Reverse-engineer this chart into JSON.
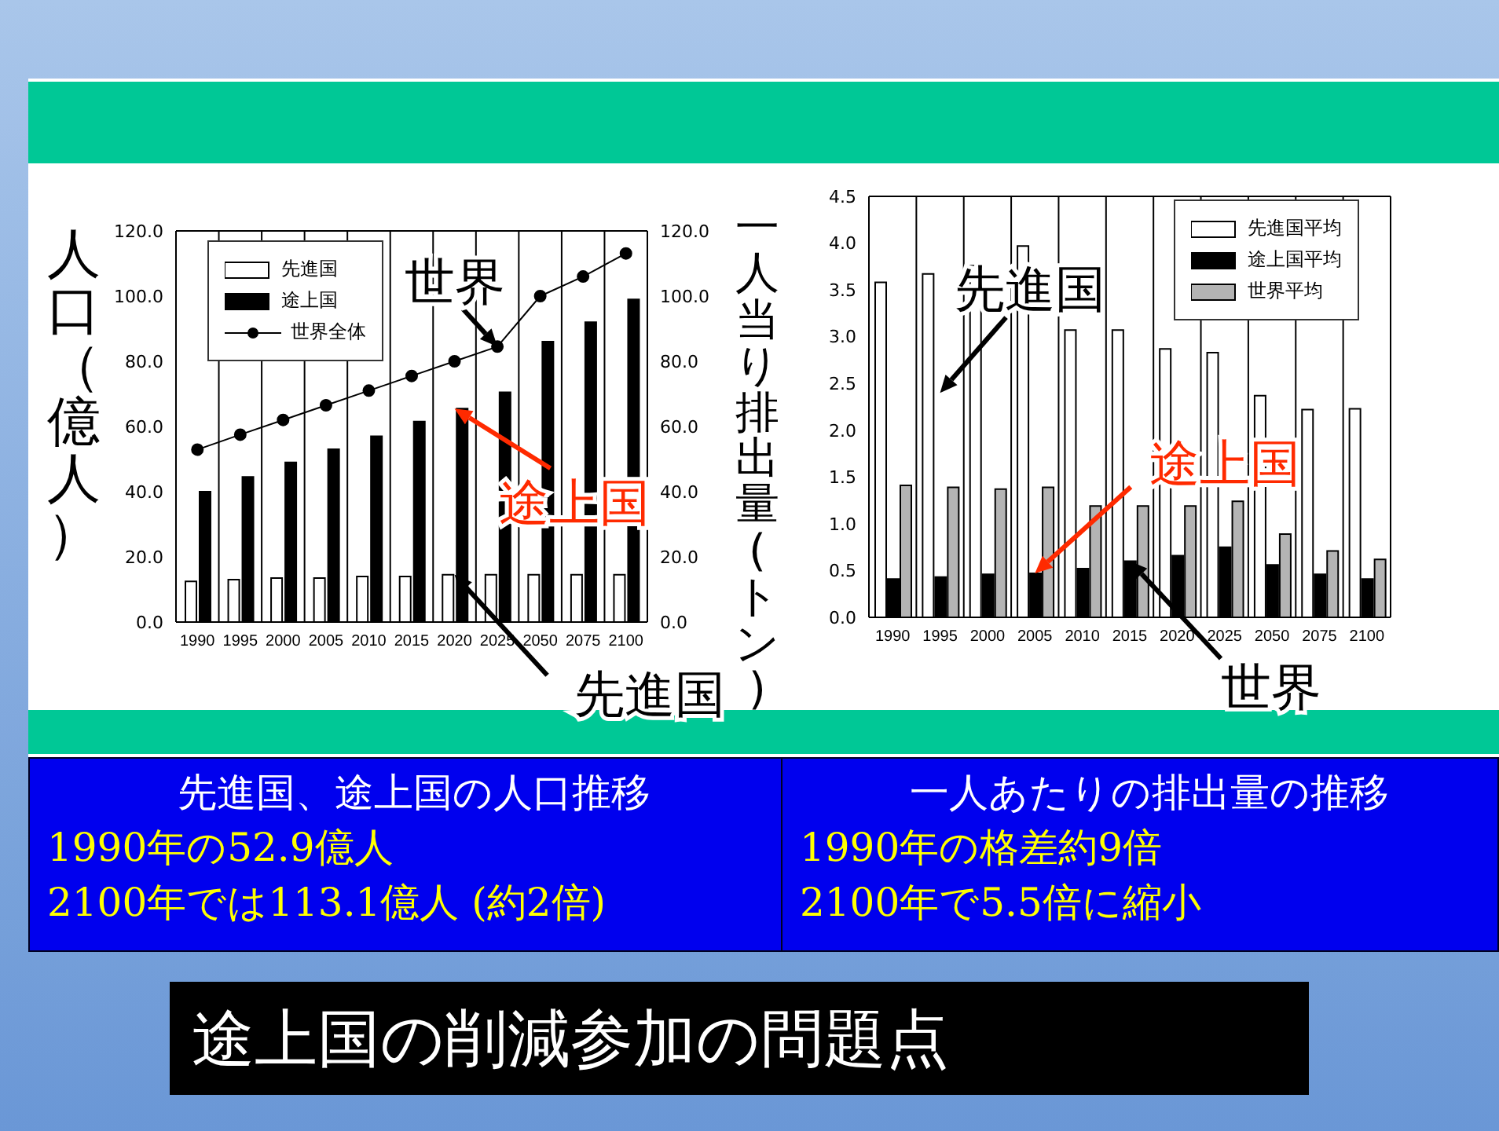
{
  "chart_data": [
    {
      "type": "bar",
      "title": "先進国、途上国の人口推移",
      "subtitle": "途上国の削減参加の問題点",
      "ylabel": "人口（億人）",
      "categories": [
        "1990",
        "1995",
        "2000",
        "2005",
        "2010",
        "2015",
        "2020",
        "2025",
        "2050",
        "2075",
        "2100"
      ],
      "series": [
        {
          "name": "先進国",
          "color": "#ffffff",
          "values": [
            12.5,
            13,
            13.5,
            13.5,
            14,
            14,
            14.5,
            14.5,
            14.5,
            14.5,
            14.5
          ]
        },
        {
          "name": "途上国",
          "color": "#000000",
          "values": [
            40,
            44.5,
            49,
            53,
            57,
            61.5,
            65.5,
            70.5,
            86,
            92,
            99
          ]
        },
        {
          "name": "世界全体",
          "type": "line",
          "color": "#000000",
          "values": [
            52.9,
            57.5,
            62,
            66.5,
            71,
            75.5,
            80,
            84.5,
            100,
            106,
            113.1
          ]
        }
      ],
      "ylim": [
        0,
        120
      ],
      "yticks": [
        {
          "value": 0,
          "label": "0.0"
        },
        {
          "value": 20,
          "label": "20.0"
        },
        {
          "value": 40,
          "label": "40.0"
        },
        {
          "value": 60,
          "label": "60.0"
        },
        {
          "value": 80,
          "label": "80.0"
        },
        {
          "value": 100,
          "label": "100.0"
        },
        {
          "value": 120,
          "label": "120.0"
        }
      ],
      "y2lim": [
        0,
        120
      ],
      "y2ticks": [
        {
          "value": 0,
          "label": "0.0"
        },
        {
          "value": 20,
          "label": "20.0"
        },
        {
          "value": 40,
          "label": "40.0"
        },
        {
          "value": 60,
          "label": "60.0"
        },
        {
          "value": 80,
          "label": "80.0"
        },
        {
          "value": 100,
          "label": "100.0"
        },
        {
          "value": 120,
          "label": "120.0"
        }
      ],
      "grid": true,
      "legend": "top left",
      "marker": "circle",
      "annotations": [
        "1990年の52.9億人",
        "2100年では113.1億人 (約2倍)",
        {
          "text": "世界",
          "x": "2025",
          "y": 84.5
        },
        {
          "text": "途上国",
          "x": "2020",
          "y": 65.5
        },
        {
          "text": "先進国",
          "x": "2020",
          "y": 14.5
        }
      ]
    },
    {
      "type": "bar",
      "title": "一人あたりの排出量の推移",
      "ylabel": "一人当り排出量(トン)",
      "categories": [
        "1990",
        "1995",
        "2000",
        "2005",
        "2010",
        "2015",
        "2020",
        "2025",
        "2050",
        "2075",
        "2100"
      ],
      "series": [
        {
          "name": "先進国平均",
          "color": "#ffffff",
          "values": [
            3.58,
            3.67,
            3.76,
            3.97,
            3.07,
            3.07,
            2.87,
            2.83,
            2.37,
            2.22,
            2.23
          ]
        },
        {
          "name": "途上国平均",
          "color": "#000000",
          "values": [
            0.41,
            0.43,
            0.46,
            0.47,
            0.52,
            0.6,
            0.66,
            0.75,
            0.56,
            0.46,
            0.41
          ]
        },
        {
          "name": "世界平均",
          "color": "#b4b4b4",
          "values": [
            1.41,
            1.39,
            1.37,
            1.39,
            1.19,
            1.19,
            1.19,
            1.24,
            0.89,
            0.71,
            0.62
          ]
        }
      ],
      "ylim": [
        0,
        4.5
      ],
      "yticks": [
        {
          "value": 0,
          "label": "0.0"
        },
        {
          "value": 0.5,
          "label": "0.5"
        },
        {
          "value": 1,
          "label": "1.0"
        },
        {
          "value": 1.5,
          "label": "1.5"
        },
        {
          "value": 2,
          "label": "2.0"
        },
        {
          "value": 2.5,
          "label": "2.5"
        },
        {
          "value": 3,
          "label": "3.0"
        },
        {
          "value": 3.5,
          "label": "3.5"
        },
        {
          "value": 4,
          "label": "4.0"
        },
        {
          "value": 4.5,
          "label": "4.5"
        }
      ],
      "grid": true,
      "legend": "top right",
      "annotations": [
        "1990年の格差約9倍",
        "2100年で5.5倍に縮小",
        {
          "text": "先進国",
          "x": "1995",
          "y": 2.4
        },
        {
          "text": "途上国",
          "x": "2005",
          "y": 0.47
        },
        {
          "text": "世界",
          "x": "2015",
          "y": 0.6
        }
      ]
    }
  ]
}
